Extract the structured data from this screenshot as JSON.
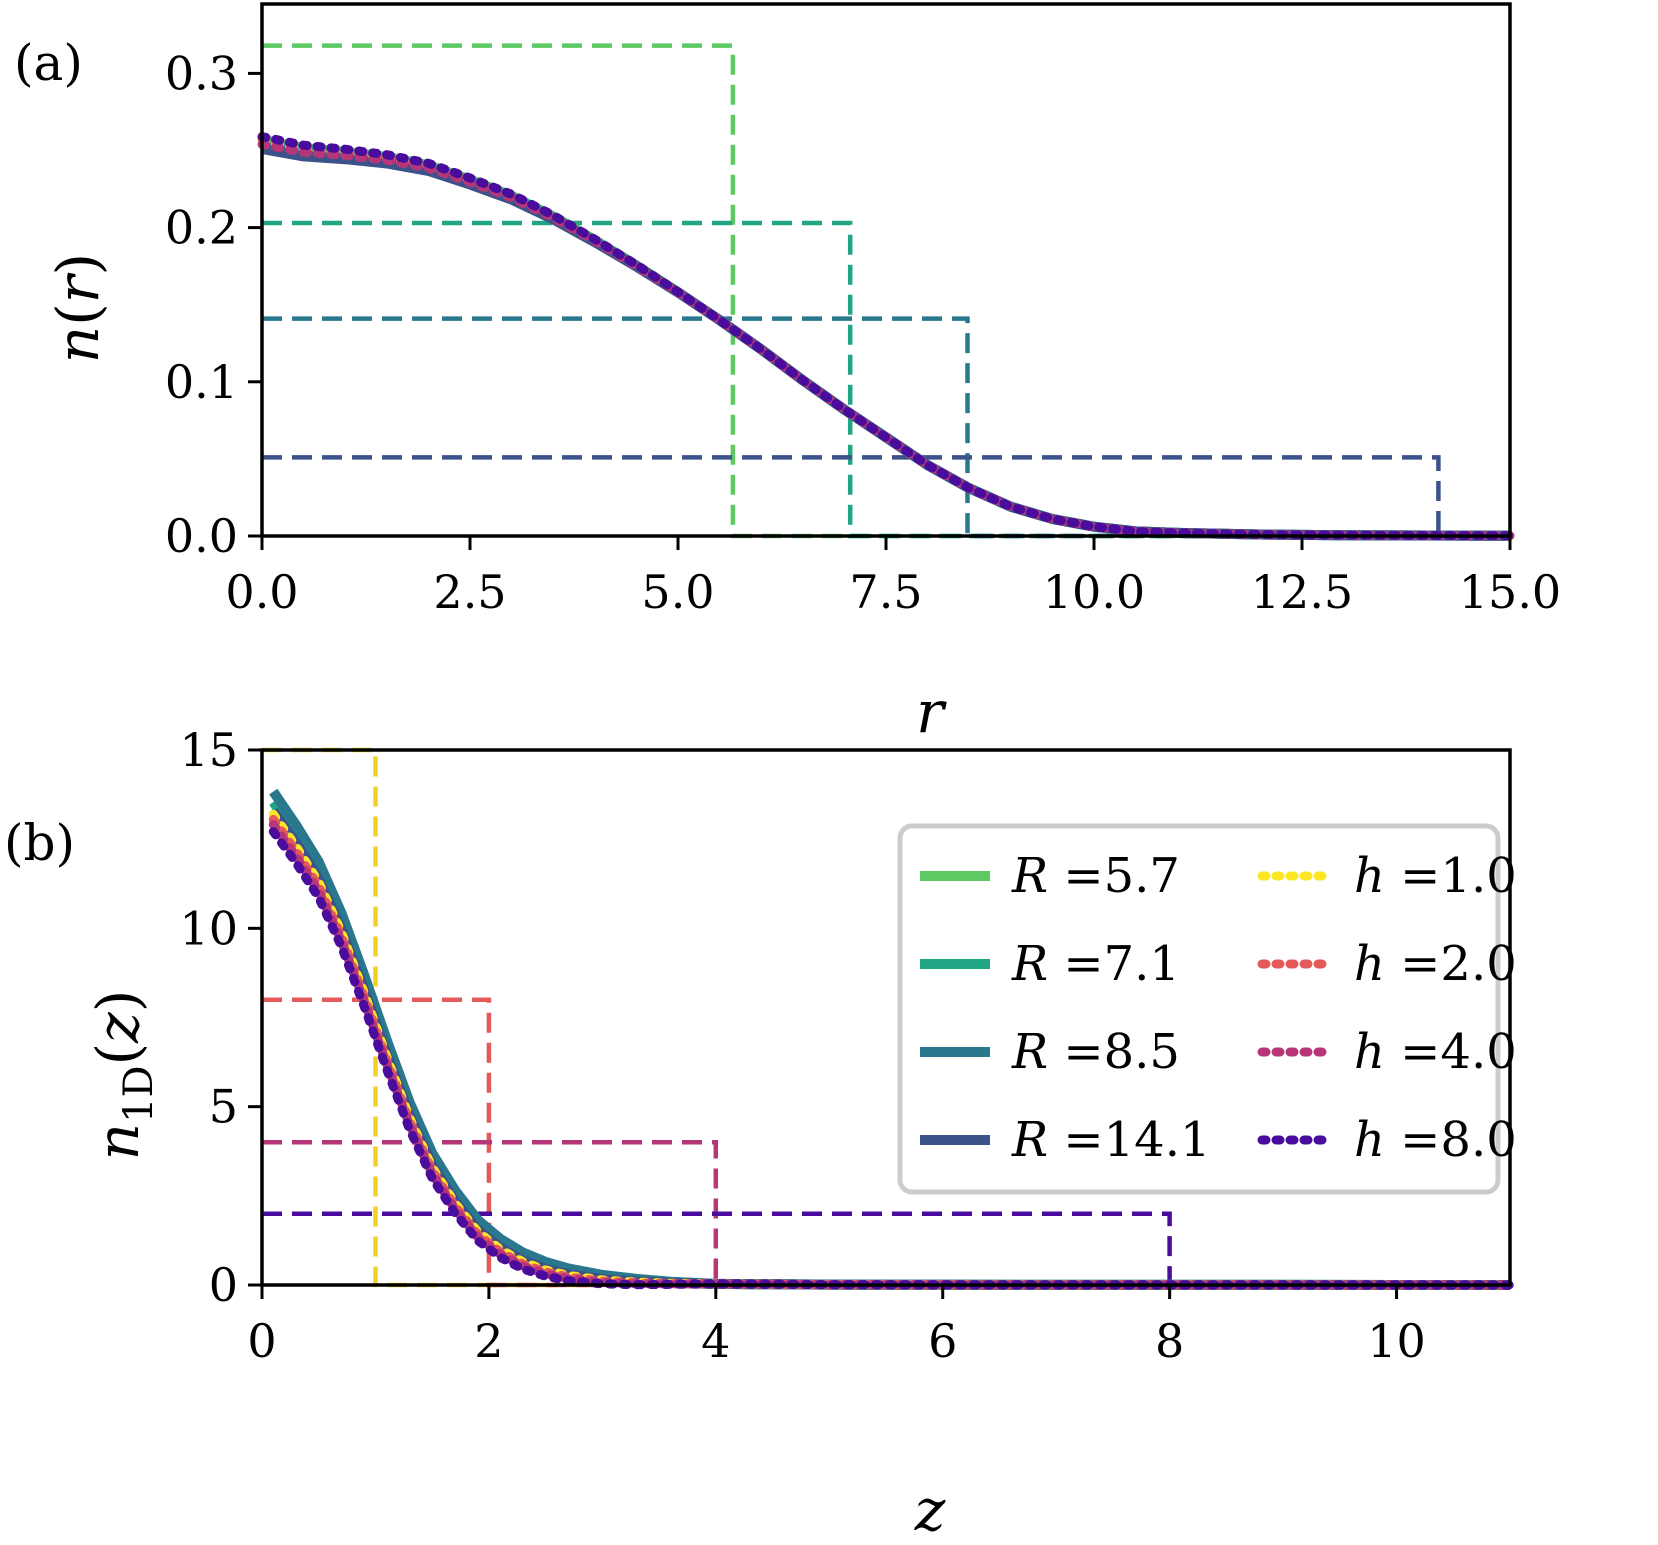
{
  "chart_data": [
    {
      "type": "line",
      "panel_label": "(a)",
      "xlabel": "r",
      "ylabel": "n(r)",
      "xlim": [
        0,
        15
      ],
      "ylim": [
        0,
        0.345
      ],
      "xticks": [
        0,
        2.5,
        5,
        7.5,
        10,
        12.5,
        15
      ],
      "xtick_labels": [
        "0.0",
        "2.5",
        "5.0",
        "7.5",
        "10.0",
        "12.5",
        "15.0"
      ],
      "yticks": [
        0,
        0.1,
        0.2,
        0.3
      ],
      "ytick_labels": [
        "0.0",
        "0.1",
        "0.2",
        "0.3"
      ],
      "grid": false,
      "profile": {
        "x": [
          0,
          0.5,
          1,
          1.5,
          2,
          2.5,
          3,
          3.5,
          4,
          4.5,
          5,
          5.5,
          6,
          6.5,
          7,
          7.5,
          8,
          8.5,
          9,
          9.5,
          10,
          10.5,
          11,
          12,
          13,
          14,
          15
        ],
        "y": [
          0.253,
          0.248,
          0.246,
          0.243,
          0.238,
          0.229,
          0.219,
          0.206,
          0.191,
          0.175,
          0.158,
          0.14,
          0.121,
          0.101,
          0.082,
          0.064,
          0.046,
          0.031,
          0.019,
          0.011,
          0.006,
          0.003,
          0.002,
          0.001,
          0.0005,
          0.0003,
          0.0002
        ]
      },
      "series": [
        {
          "name": "R =5.7",
          "style": "solid",
          "color": "#5ec962"
        },
        {
          "name": "R =7.1",
          "style": "solid",
          "color": "#21a585"
        },
        {
          "name": "R =8.5",
          "style": "solid",
          "color": "#2a788e"
        },
        {
          "name": "R =14.1",
          "style": "solid",
          "color": "#3b528b"
        },
        {
          "name": "h =1.0",
          "style": "dotted",
          "color": "#fde725"
        },
        {
          "name": "h =2.0",
          "style": "dotted",
          "color": "#e45a5a"
        },
        {
          "name": "h =4.0",
          "style": "dotted",
          "color": "#b63679"
        },
        {
          "name": "h =8.0",
          "style": "dotted",
          "color": "#4a0c9c"
        }
      ],
      "step_references": [
        {
          "color": "#5ec962",
          "height": 0.318,
          "cutoff": 5.66
        },
        {
          "color": "#21a585",
          "height": 0.203,
          "cutoff": 7.07
        },
        {
          "color": "#2a788e",
          "height": 0.141,
          "cutoff": 8.48
        },
        {
          "color": "#3b528b",
          "height": 0.051,
          "cutoff": 14.14
        }
      ]
    },
    {
      "type": "line",
      "panel_label": "(b)",
      "xlabel": "z",
      "ylabel": "n1D(z)",
      "xlim": [
        0,
        11
      ],
      "ylim": [
        0,
        15
      ],
      "xticks": [
        0,
        2,
        4,
        6,
        8,
        10
      ],
      "xtick_labels": [
        "0",
        "2",
        "4",
        "6",
        "8",
        "10"
      ],
      "yticks": [
        0,
        5,
        10,
        15
      ],
      "ytick_labels": [
        "0",
        "5",
        "10",
        "15"
      ],
      "grid": false,
      "legend_position": "upper right",
      "profile": {
        "x": [
          0.1,
          0.3,
          0.5,
          0.7,
          0.9,
          1.1,
          1.3,
          1.5,
          1.7,
          1.9,
          2.1,
          2.3,
          2.5,
          2.7,
          3.0,
          3.3,
          3.6,
          4.0,
          5.0,
          6.0,
          8.0,
          11.0
        ],
        "y": [
          13.2,
          12.3,
          11.3,
          9.9,
          8.2,
          6.4,
          4.7,
          3.3,
          2.3,
          1.5,
          1.0,
          0.65,
          0.42,
          0.27,
          0.14,
          0.08,
          0.05,
          0.03,
          0.01,
          0.005,
          0.002,
          0.001
        ]
      },
      "series": [
        {
          "name": "R =5.7",
          "style": "solid",
          "color": "#5ec962"
        },
        {
          "name": "R =7.1",
          "style": "solid",
          "color": "#21a585"
        },
        {
          "name": "R =8.5",
          "style": "solid",
          "color": "#2a788e"
        },
        {
          "name": "R =14.1",
          "style": "solid",
          "color": "#3b528b"
        },
        {
          "name": "h =1.0",
          "style": "dotted",
          "color": "#fde725"
        },
        {
          "name": "h =2.0",
          "style": "dotted",
          "color": "#e45a5a"
        },
        {
          "name": "h =4.0",
          "style": "dotted",
          "color": "#b63679"
        },
        {
          "name": "h =8.0",
          "style": "dotted",
          "color": "#4a0c9c"
        }
      ],
      "step_references": [
        {
          "color": "#f2d024",
          "height": 16,
          "cutoff": 1
        },
        {
          "color": "#e45a5a",
          "height": 8,
          "cutoff": 2
        },
        {
          "color": "#b63679",
          "height": 4,
          "cutoff": 4
        },
        {
          "color": "#4a0c9c",
          "height": 2,
          "cutoff": 8
        }
      ],
      "legend": {
        "columns": [
          [
            {
              "var": "R",
              "text": " =5.7",
              "color": "#5ec962",
              "style": "solid"
            },
            {
              "var": "R",
              "text": " =7.1",
              "color": "#21a585",
              "style": "solid"
            },
            {
              "var": "R",
              "text": " =8.5",
              "color": "#2a788e",
              "style": "solid"
            },
            {
              "var": "R",
              "text": " =14.1",
              "color": "#3b528b",
              "style": "solid"
            }
          ],
          [
            {
              "var": "h",
              "text": " =1.0",
              "color": "#fde725",
              "style": "dotted"
            },
            {
              "var": "h",
              "text": " =2.0",
              "color": "#e45a5a",
              "style": "dotted"
            },
            {
              "var": "h",
              "text": " =4.0",
              "color": "#b63679",
              "style": "dotted"
            },
            {
              "var": "h",
              "text": " =8.0",
              "color": "#4a0c9c",
              "style": "dotted"
            }
          ]
        ]
      }
    }
  ]
}
